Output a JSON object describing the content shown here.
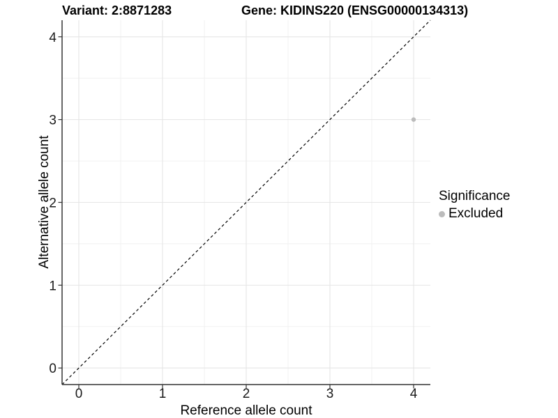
{
  "figure": {
    "title_left": "Variant: 2:8871283",
    "title_right": "Gene: KIDINS220 (ENSG00000134313)"
  },
  "chart_data": {
    "type": "scatter",
    "title": "Variant: 2:8871283    Gene: KIDINS220 (ENSG00000134313)",
    "xlabel": "Reference allele count",
    "ylabel": "Alternative allele count",
    "xlim": [
      -0.2,
      4.2
    ],
    "ylim": [
      -0.2,
      4.2
    ],
    "x_ticks": [
      0,
      1,
      2,
      3,
      4
    ],
    "y_ticks": [
      0,
      1,
      2,
      3,
      4
    ],
    "x_minor_ticks": [
      0.5,
      1.5,
      2.5,
      3.5
    ],
    "y_minor_ticks": [
      0.5,
      1.5,
      2.5,
      3.5
    ],
    "grid": true,
    "series": [
      {
        "name": "Excluded",
        "color": "#bcbcbc",
        "points": [
          {
            "x": 4,
            "y": 3
          }
        ]
      }
    ],
    "reference_line": {
      "type": "abline",
      "slope": 1,
      "intercept": 0,
      "style": "dashed",
      "color": "#000000"
    },
    "legend": {
      "title": "Significance",
      "position": "right",
      "entries": [
        {
          "label": "Excluded",
          "color": "#bcbcbc",
          "marker": "circle"
        }
      ]
    },
    "style": {
      "background": "#ffffff",
      "grid_major": "#e5e5e5",
      "grid_minor": "#f1f1f1",
      "axis_line": "#333333",
      "tick_label": "#1a1a1a",
      "point_radius": 3.2
    }
  }
}
